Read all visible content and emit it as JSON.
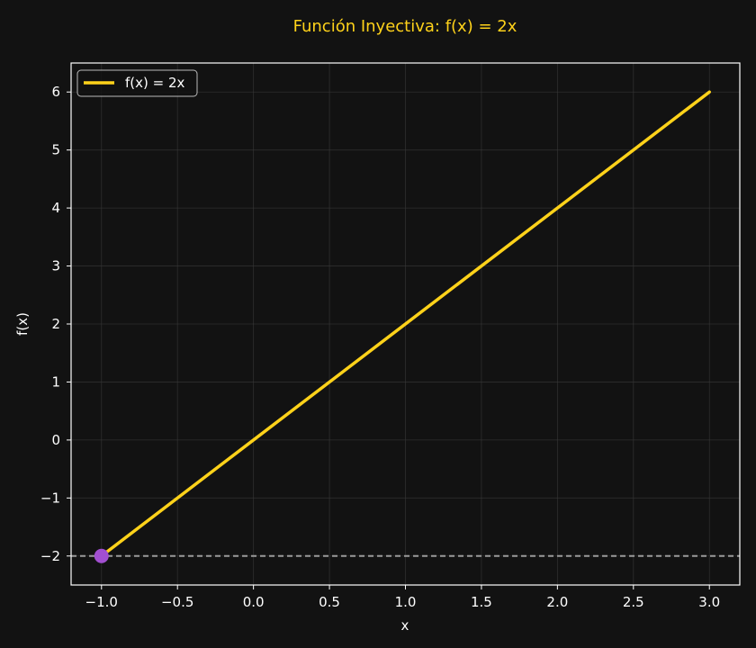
{
  "chart_data": {
    "type": "line",
    "title": "Función Inyectiva: f(x) = 2x",
    "xlabel": "x",
    "ylabel": "f(x)",
    "xlim": [
      -1.2,
      3.2
    ],
    "ylim": [
      -2.5,
      6.5
    ],
    "xticks": [
      -1.0,
      -0.5,
      0.0,
      0.5,
      1.0,
      1.5,
      2.0,
      2.5,
      3.0
    ],
    "xtick_labels": [
      "−1.0",
      "−0.5",
      "0.0",
      "0.5",
      "1.0",
      "1.5",
      "2.0",
      "2.5",
      "3.0"
    ],
    "yticks": [
      -2,
      -1,
      0,
      1,
      2,
      3,
      4,
      5,
      6
    ],
    "ytick_labels": [
      "−2",
      "−1",
      "0",
      "1",
      "2",
      "3",
      "4",
      "5",
      "6"
    ],
    "grid": true,
    "legend_position": "top-left",
    "series": [
      {
        "name": "f(x) = 2x",
        "x": [
          -1,
          3
        ],
        "y": [
          -2,
          6
        ],
        "color": "#FFD21A"
      }
    ],
    "hline": {
      "y": -2,
      "style": "dashed",
      "color": "#9A9A9A"
    },
    "highlight_point": {
      "x": -1,
      "y": -2,
      "color": "#A24FD0"
    },
    "colors": {
      "background": "#121212",
      "axes": "#FFFFFF",
      "grid": "#3A3A3A",
      "title": "#FFD21A",
      "text": "#FFFFFF"
    }
  }
}
